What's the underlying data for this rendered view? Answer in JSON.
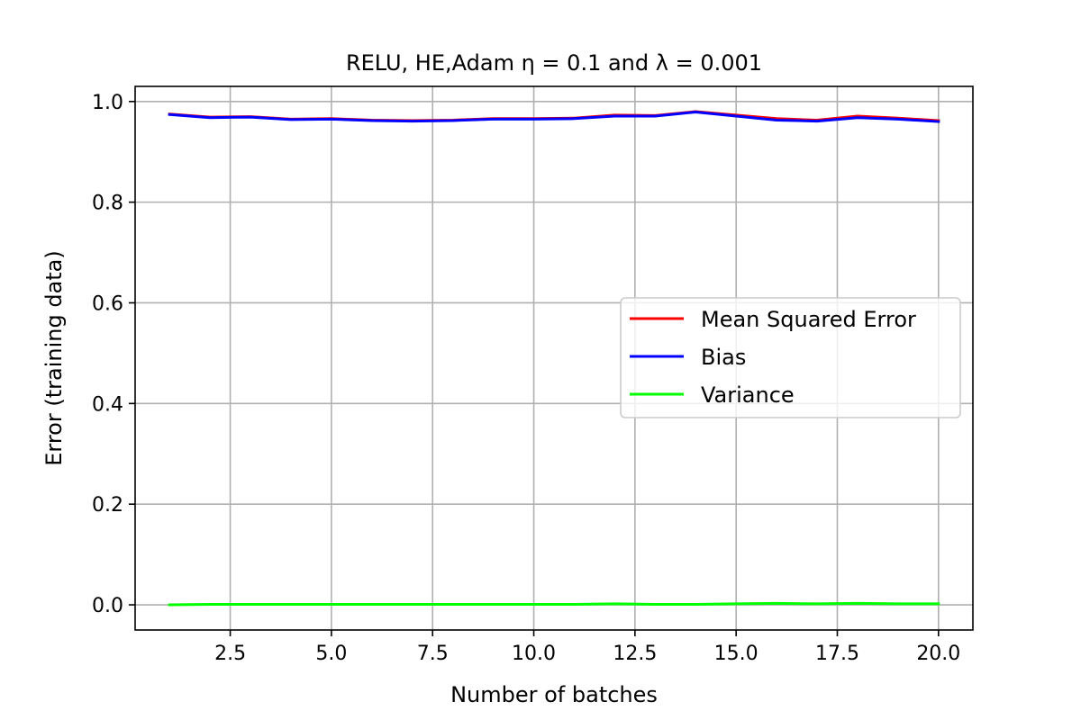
{
  "chart_data": {
    "type": "line",
    "title": "RELU, HE,Adam η = 0.1 and λ = 0.001",
    "xlabel": "Number of batches",
    "ylabel": "Error (training data)",
    "xlim": [
      0.15,
      20.85
    ],
    "ylim": [
      -0.05,
      1.03
    ],
    "xticks": [
      2.5,
      5.0,
      7.5,
      10.0,
      12.5,
      15.0,
      17.5,
      20.0
    ],
    "xtick_labels": [
      "2.5",
      "5.0",
      "7.5",
      "10.0",
      "12.5",
      "15.0",
      "17.5",
      "20.0"
    ],
    "yticks": [
      0.0,
      0.2,
      0.4,
      0.6,
      0.8,
      1.0
    ],
    "ytick_labels": [
      "0.0",
      "0.2",
      "0.4",
      "0.6",
      "0.8",
      "1.0"
    ],
    "grid": true,
    "legend_position": "center-right",
    "x": [
      1,
      2,
      3,
      4,
      5,
      6,
      7,
      8,
      9,
      10,
      11,
      12,
      13,
      14,
      15,
      16,
      17,
      18,
      19,
      20
    ],
    "series": [
      {
        "name": "Mean Squared Error",
        "color": "#ff0000",
        "values": [
          0.975,
          0.969,
          0.97,
          0.965,
          0.966,
          0.963,
          0.962,
          0.963,
          0.966,
          0.966,
          0.967,
          0.973,
          0.972,
          0.98,
          0.973,
          0.966,
          0.963,
          0.971,
          0.967,
          0.962
        ]
      },
      {
        "name": "Bias",
        "color": "#0000ff",
        "values": [
          0.974,
          0.968,
          0.969,
          0.964,
          0.965,
          0.962,
          0.961,
          0.962,
          0.965,
          0.965,
          0.966,
          0.971,
          0.971,
          0.979,
          0.971,
          0.963,
          0.961,
          0.968,
          0.965,
          0.96
        ]
      },
      {
        "name": "Variance",
        "color": "#00ff00",
        "values": [
          0.0,
          0.001,
          0.001,
          0.001,
          0.001,
          0.001,
          0.001,
          0.001,
          0.001,
          0.001,
          0.001,
          0.002,
          0.001,
          0.001,
          0.002,
          0.003,
          0.002,
          0.003,
          0.002,
          0.002
        ]
      }
    ]
  }
}
